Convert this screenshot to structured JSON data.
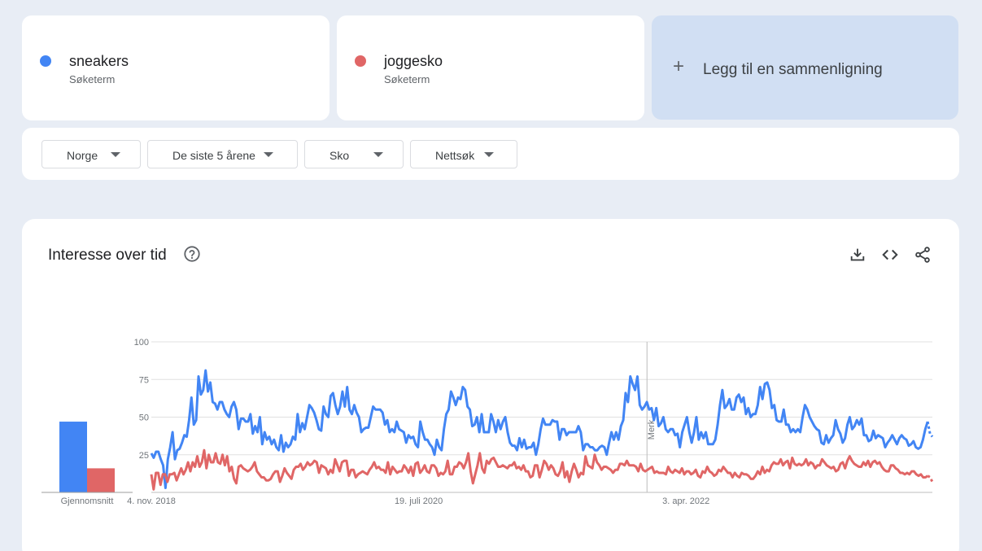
{
  "terms": [
    {
      "name": "sneakers",
      "type": "Søketerm",
      "color": "#4285f4"
    },
    {
      "name": "joggesko",
      "type": "Søketerm",
      "color": "#e06666"
    }
  ],
  "add_compare": {
    "plus": "+",
    "label": "Legg til en sammenligning"
  },
  "filters": {
    "region": "Norge",
    "period": "De siste 5 årene",
    "category": "Sko",
    "search_type": "Nettsøk"
  },
  "section": {
    "title": "Interesse over tid",
    "help_icon": "help-circle-icon",
    "actions": [
      "download-icon",
      "embed-code-icon",
      "share-icon"
    ]
  },
  "chart_data": {
    "type": "line",
    "ylim": [
      0,
      100
    ],
    "yticks": [
      "100",
      "75",
      "50",
      "25"
    ],
    "xtick_labels": [
      "4. nov. 2018",
      "19. juli 2020",
      "3. apr. 2022"
    ],
    "x_range": [
      "2018-11-04",
      "2023-10-29"
    ],
    "annotation": {
      "label": "Merk",
      "date": "2022-01-02"
    },
    "grid": true,
    "average": {
      "label": "Gjennomsnitt",
      "values": [
        47,
        16
      ]
    },
    "series": [
      {
        "name": "sneakers",
        "color": "#4285f4",
        "values": [
          26,
          23,
          27,
          27,
          22,
          18,
          3,
          22,
          30,
          40,
          22,
          28,
          29,
          33,
          38,
          37,
          48,
          63,
          45,
          48,
          77,
          65,
          68,
          81,
          67,
          73,
          60,
          59,
          55,
          60,
          60,
          55,
          52,
          50,
          57,
          60,
          55,
          42,
          49,
          49,
          47,
          47,
          52,
          39,
          44,
          40,
          50,
          32,
          40,
          35,
          37,
          32,
          35,
          30,
          28,
          38,
          27,
          33,
          30,
          32,
          37,
          35,
          52,
          40,
          46,
          42,
          50,
          58,
          56,
          53,
          48,
          42,
          41,
          57,
          52,
          50,
          64,
          66,
          58,
          52,
          57,
          67,
          57,
          70,
          55,
          52,
          58,
          53,
          50,
          40,
          42,
          43,
          43,
          50,
          57,
          55,
          55,
          55,
          53,
          45,
          48,
          40,
          42,
          40,
          47,
          42,
          41,
          40,
          33,
          38,
          36,
          37,
          32,
          30,
          47,
          40,
          35,
          35,
          32,
          30,
          25,
          35,
          30,
          28,
          42,
          52,
          55,
          67,
          63,
          58,
          63,
          62,
          70,
          68,
          57,
          55,
          44,
          45,
          50,
          40,
          52,
          40,
          40,
          40,
          52,
          47,
          40,
          48,
          42,
          47,
          50,
          40,
          33,
          31,
          31,
          28,
          36,
          30,
          35,
          29,
          30,
          30,
          33,
          25,
          32,
          42,
          49,
          45,
          45,
          45,
          48,
          47,
          47,
          35,
          42,
          42,
          38,
          40,
          40,
          40,
          40,
          44,
          40,
          28,
          32,
          32,
          30,
          30,
          28,
          28,
          30,
          31,
          30,
          25,
          33,
          40,
          35,
          40,
          35,
          44,
          48,
          66,
          60,
          77,
          72,
          68,
          77,
          58,
          55,
          57,
          60,
          55,
          56,
          48,
          56,
          44,
          46,
          50,
          42,
          40,
          42,
          42,
          38,
          39,
          30,
          40,
          45,
          50,
          40,
          33,
          40,
          50,
          35,
          40,
          36,
          40,
          32,
          32,
          32,
          35,
          45,
          58,
          68,
          56,
          58,
          62,
          55,
          55,
          63,
          65,
          60,
          63,
          52,
          56,
          50,
          52,
          52,
          58,
          70,
          62,
          72,
          73,
          68,
          56,
          58,
          48,
          47,
          47,
          55,
          45,
          45,
          40,
          42,
          40,
          42,
          40,
          50,
          58,
          55,
          50,
          47,
          44,
          42,
          41,
          33,
          32,
          38,
          33,
          36,
          38,
          48,
          42,
          39,
          33,
          36,
          45,
          50,
          42,
          44,
          48,
          45,
          49,
          38,
          38,
          34,
          35,
          41,
          36,
          38,
          37,
          36,
          30,
          33,
          35,
          38,
          35,
          32,
          36,
          38,
          36,
          35,
          31,
          32,
          34,
          30,
          29,
          30,
          35,
          42,
          47,
          39,
          37
        ]
      },
      {
        "name": "joggesko",
        "color": "#e06666",
        "values": [
          12,
          2,
          13,
          13,
          5,
          12,
          12,
          7,
          12,
          12,
          13,
          8,
          12,
          16,
          12,
          15,
          20,
          14,
          20,
          17,
          24,
          17,
          20,
          28,
          16,
          25,
          20,
          20,
          26,
          20,
          19,
          25,
          18,
          24,
          14,
          17,
          9,
          6,
          17,
          18,
          16,
          15,
          14,
          15,
          17,
          20,
          14,
          12,
          10,
          10,
          8,
          8,
          9,
          12,
          14,
          14,
          7,
          11,
          16,
          13,
          11,
          9,
          15,
          17,
          17,
          19,
          15,
          17,
          20,
          18,
          19,
          21,
          20,
          13,
          18,
          17,
          16,
          12,
          15,
          13,
          22,
          18,
          14,
          20,
          21,
          21,
          11,
          15,
          15,
          10,
          12,
          13,
          14,
          13,
          12,
          15,
          17,
          20,
          16,
          17,
          15,
          15,
          13,
          20,
          12,
          17,
          15,
          13,
          14,
          14,
          18,
          16,
          13,
          17,
          11,
          19,
          20,
          13,
          15,
          18,
          14,
          13,
          18,
          18,
          16,
          11,
          13,
          12,
          14,
          21,
          12,
          12,
          17,
          17,
          20,
          19,
          16,
          20,
          26,
          14,
          6,
          12,
          18,
          26,
          16,
          13,
          21,
          19,
          22,
          23,
          20,
          17,
          17,
          18,
          17,
          16,
          18,
          18,
          20,
          16,
          17,
          15,
          18,
          14,
          14,
          10,
          11,
          18,
          18,
          10,
          15,
          21,
          19,
          15,
          18,
          16,
          12,
          11,
          14,
          20,
          10,
          14,
          7,
          14,
          19,
          15,
          10,
          13,
          12,
          24,
          18,
          17,
          16,
          25,
          20,
          18,
          15,
          17,
          17,
          16,
          15,
          13,
          15,
          15,
          19,
          19,
          18,
          21,
          18,
          18,
          18,
          17,
          14,
          19,
          15,
          14,
          15,
          16,
          17,
          13,
          14,
          13,
          13,
          13,
          12,
          17,
          14,
          13,
          15,
          14,
          13,
          16,
          12,
          14,
          14,
          12,
          13,
          15,
          11,
          10,
          14,
          13,
          17,
          14,
          13,
          11,
          12,
          15,
          14,
          17,
          15,
          13,
          13,
          10,
          13,
          11,
          10,
          13,
          12,
          12,
          11,
          9,
          9,
          11,
          14,
          12,
          17,
          13,
          15,
          14,
          18,
          20,
          19,
          19,
          22,
          18,
          20,
          21,
          16,
          23,
          19,
          18,
          19,
          18,
          19,
          22,
          18,
          20,
          19,
          16,
          18,
          18,
          22,
          20,
          18,
          17,
          16,
          17,
          14,
          15,
          19,
          20,
          16,
          21,
          24,
          21,
          19,
          18,
          17,
          17,
          20,
          18,
          21,
          17,
          20,
          21,
          19,
          20,
          17,
          15,
          14,
          14,
          18,
          18,
          16,
          15,
          13,
          13,
          12,
          13,
          12,
          14,
          14,
          12,
          11,
          12,
          10,
          10,
          11,
          10,
          7
        ]
      }
    ]
  }
}
